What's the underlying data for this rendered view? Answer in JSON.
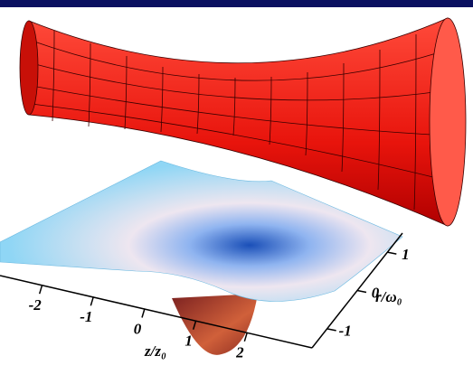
{
  "chart_data": {
    "type": "surface",
    "xlabel": "z/z₀",
    "ylabel": "r/ω₀",
    "xlim": [
      -3,
      3
    ],
    "xticks": [
      -2,
      -1,
      0,
      1,
      2
    ],
    "ylim": [
      -1.5,
      1.5
    ],
    "yticks": [
      -1,
      0,
      1
    ]
  }
}
